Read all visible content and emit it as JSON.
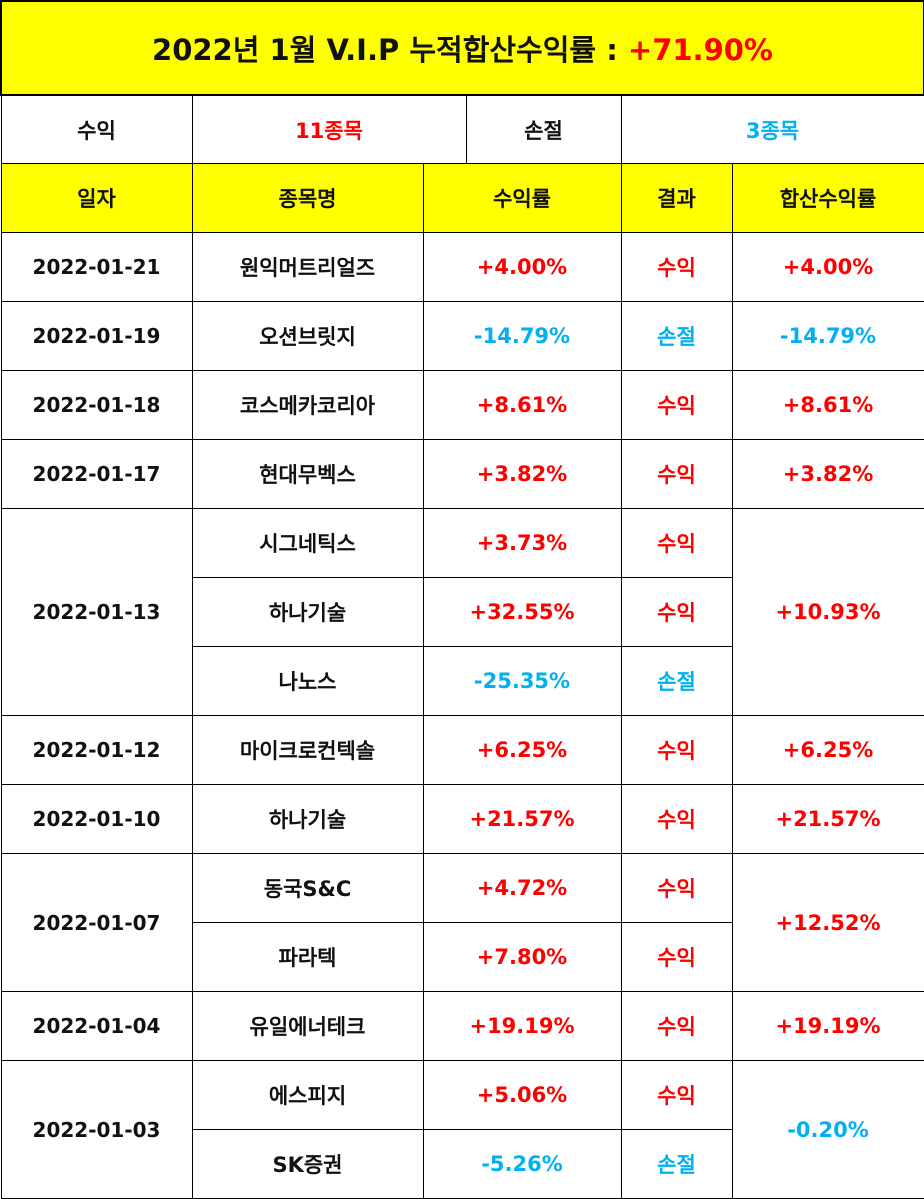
{
  "title": {
    "text": "2022년 1월 V.I.P 누적합산수익률 :",
    "value": "+71.90%"
  },
  "summary": {
    "profit_label": "수익",
    "profit_value": "11종목",
    "loss_label": "손절",
    "loss_value": "3종목"
  },
  "headers": {
    "date": "일자",
    "name": "종목명",
    "rate": "수익률",
    "result": "결과",
    "total": "합산수익률"
  },
  "colors": {
    "up": "#ff0000",
    "down": "#00b0f0",
    "header_bg": "#ffff00"
  },
  "groups": [
    {
      "date": "2022-01-21",
      "total": "+4.00%",
      "total_dir": "up",
      "rows": [
        {
          "name": "원익머트리얼즈",
          "rate": "+4.00%",
          "result": "수익",
          "dir": "up"
        }
      ]
    },
    {
      "date": "2022-01-19",
      "total": "-14.79%",
      "total_dir": "down",
      "rows": [
        {
          "name": "오션브릿지",
          "rate": "-14.79%",
          "result": "손절",
          "dir": "down"
        }
      ]
    },
    {
      "date": "2022-01-18",
      "total": "+8.61%",
      "total_dir": "up",
      "rows": [
        {
          "name": "코스메카코리아",
          "rate": "+8.61%",
          "result": "수익",
          "dir": "up"
        }
      ]
    },
    {
      "date": "2022-01-17",
      "total": "+3.82%",
      "total_dir": "up",
      "rows": [
        {
          "name": "현대무벡스",
          "rate": "+3.82%",
          "result": "수익",
          "dir": "up"
        }
      ]
    },
    {
      "date": "2022-01-13",
      "total": "+10.93%",
      "total_dir": "up",
      "rows": [
        {
          "name": "시그네틱스",
          "rate": "+3.73%",
          "result": "수익",
          "dir": "up"
        },
        {
          "name": "하나기술",
          "rate": "+32.55%",
          "result": "수익",
          "dir": "up"
        },
        {
          "name": "나노스",
          "rate": "-25.35%",
          "result": "손절",
          "dir": "down"
        }
      ]
    },
    {
      "date": "2022-01-12",
      "total": "+6.25%",
      "total_dir": "up",
      "rows": [
        {
          "name": "마이크로컨텍솔",
          "rate": "+6.25%",
          "result": "수익",
          "dir": "up"
        }
      ]
    },
    {
      "date": "2022-01-10",
      "total": "+21.57%",
      "total_dir": "up",
      "rows": [
        {
          "name": "하나기술",
          "rate": "+21.57%",
          "result": "수익",
          "dir": "up"
        }
      ]
    },
    {
      "date": "2022-01-07",
      "total": "+12.52%",
      "total_dir": "up",
      "rows": [
        {
          "name": "동국S&C",
          "rate": "+4.72%",
          "result": "수익",
          "dir": "up"
        },
        {
          "name": "파라텍",
          "rate": "+7.80%",
          "result": "수익",
          "dir": "up"
        }
      ]
    },
    {
      "date": "2022-01-04",
      "total": "+19.19%",
      "total_dir": "up",
      "rows": [
        {
          "name": "유일에너테크",
          "rate": "+19.19%",
          "result": "수익",
          "dir": "up"
        }
      ]
    },
    {
      "date": "2022-01-03",
      "total": "-0.20%",
      "total_dir": "down",
      "rows": [
        {
          "name": "에스피지",
          "rate": "+5.06%",
          "result": "수익",
          "dir": "up"
        },
        {
          "name": "SK증권",
          "rate": "-5.26%",
          "result": "손절",
          "dir": "down"
        }
      ]
    }
  ]
}
